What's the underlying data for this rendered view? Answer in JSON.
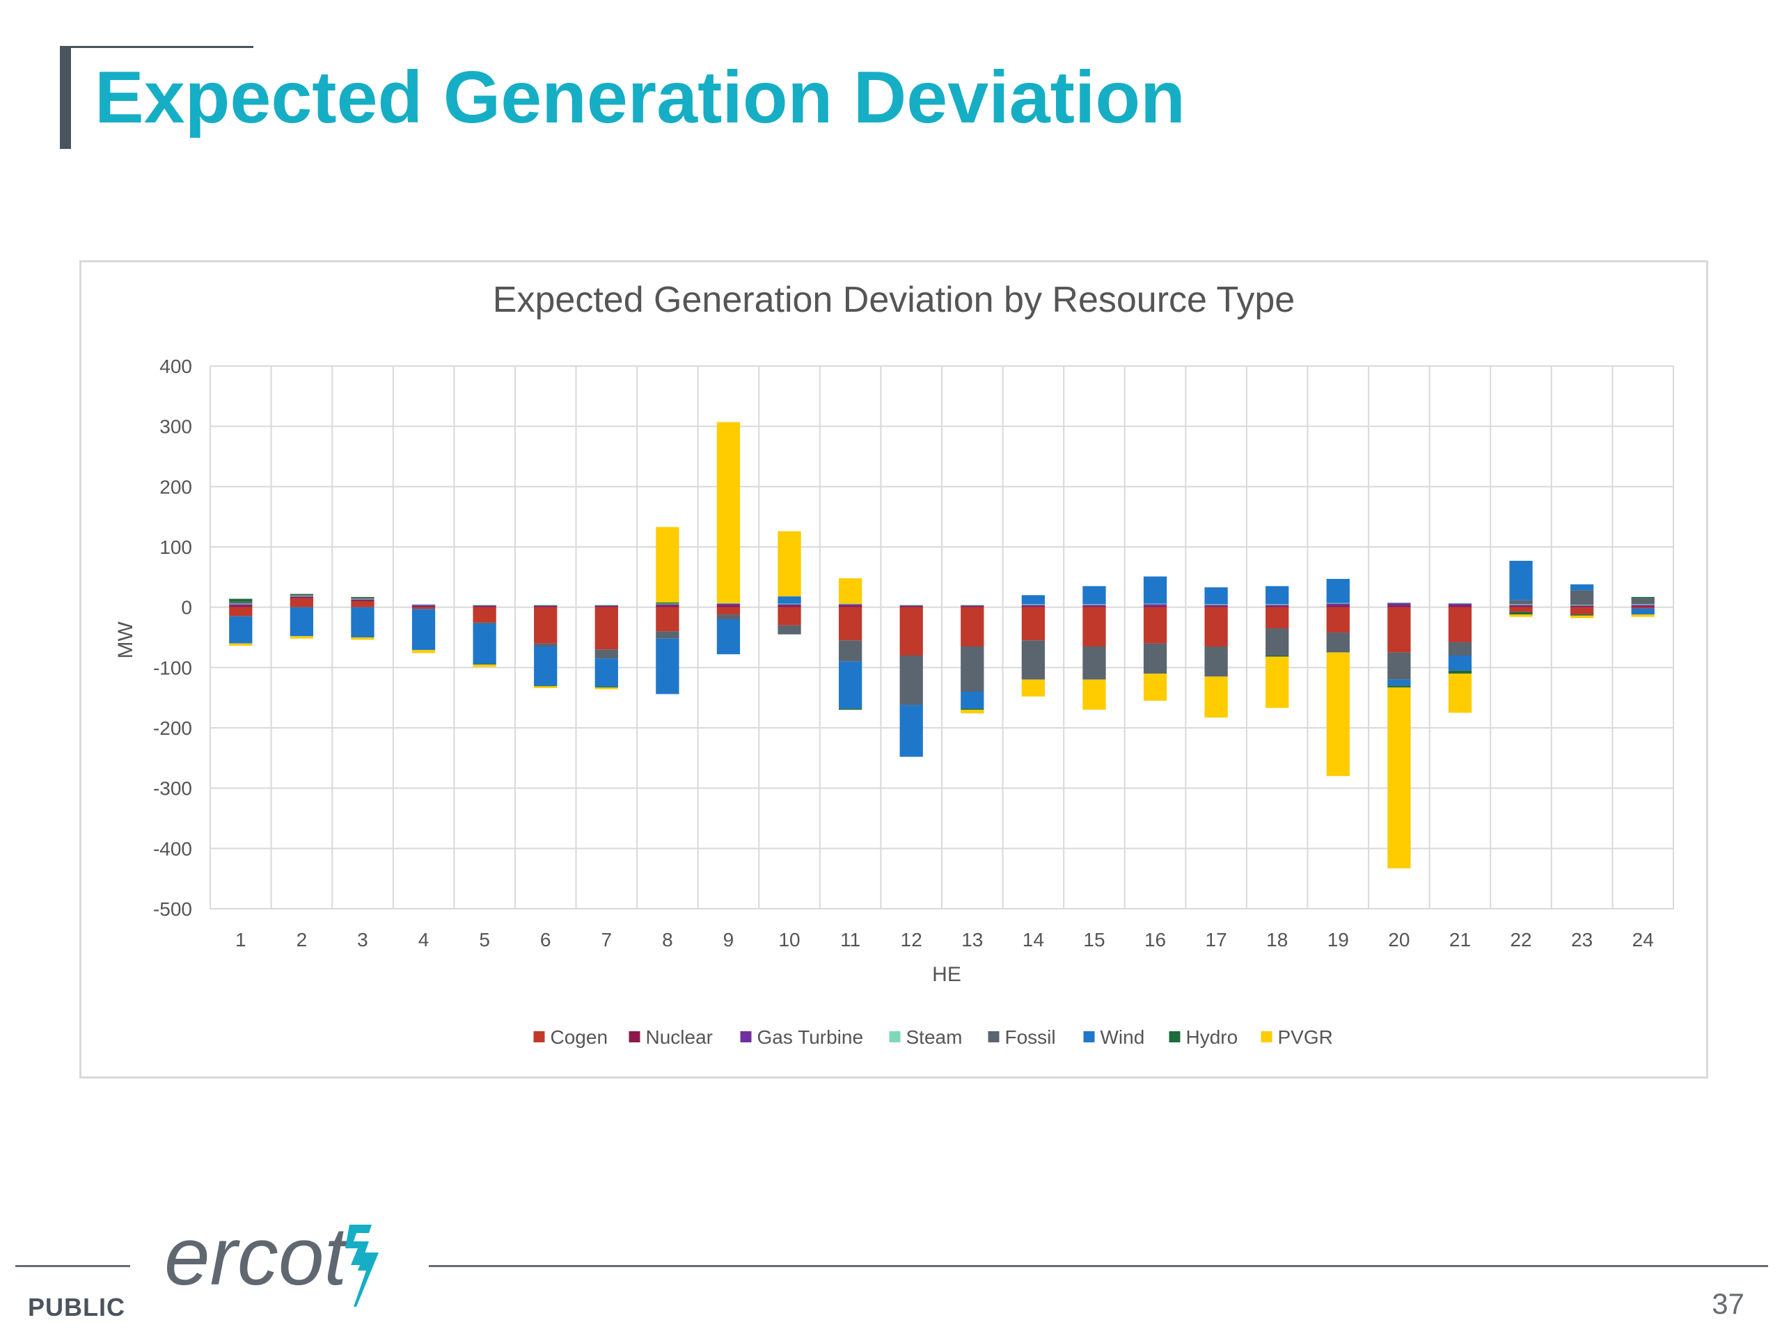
{
  "slide": {
    "title": "Expected Generation Deviation",
    "footer_label": "PUBLIC",
    "page_number": "37",
    "logo_text": "ercot",
    "title_color": "#16aec4"
  },
  "chart_data": {
    "type": "bar",
    "stacked": true,
    "title": "Expected Generation Deviation by Resource Type",
    "xlabel": "HE",
    "ylabel": "MW",
    "ylim": [
      -500,
      400
    ],
    "yticks": [
      400,
      300,
      200,
      100,
      0,
      -100,
      -200,
      -300,
      -400,
      -500
    ],
    "grid": true,
    "legend_position": "bottom",
    "categories": [
      "1",
      "2",
      "3",
      "4",
      "5",
      "6",
      "7",
      "8",
      "9",
      "10",
      "11",
      "12",
      "13",
      "14",
      "15",
      "16",
      "17",
      "18",
      "19",
      "20",
      "21",
      "22",
      "23",
      "24"
    ],
    "series": [
      {
        "name": "Cogen",
        "color": "#c0392b",
        "values": [
          -15,
          15,
          10,
          -3,
          -25,
          -60,
          -70,
          -40,
          -12,
          -30,
          -55,
          -80,
          -65,
          -55,
          -65,
          -60,
          -65,
          -35,
          -42,
          -75,
          -58,
          -8,
          -12,
          -2
        ]
      },
      {
        "name": "Nuclear",
        "color": "#8b1a4a",
        "values": [
          3,
          2,
          2,
          2,
          2,
          2,
          2,
          3,
          3,
          3,
          3,
          2,
          2,
          2,
          2,
          2,
          2,
          2,
          3,
          3,
          3,
          2,
          2,
          2
        ]
      },
      {
        "name": "Gas Turbine",
        "color": "#7030a0",
        "values": [
          2,
          1,
          1,
          2,
          1,
          1,
          1,
          2,
          3,
          2,
          2,
          1,
          1,
          2,
          2,
          3,
          2,
          2,
          3,
          4,
          3,
          2,
          1,
          2
        ]
      },
      {
        "name": "Steam",
        "color": "#7dd9b5",
        "values": [
          1,
          1,
          1,
          1,
          1,
          1,
          1,
          1,
          1,
          1,
          1,
          1,
          1,
          1,
          1,
          1,
          1,
          1,
          1,
          1,
          1,
          1,
          1,
          1
        ]
      },
      {
        "name": "Fossil",
        "color": "#5a6570",
        "values": [
          3,
          2,
          2,
          0,
          -3,
          -5,
          -15,
          -12,
          -8,
          -15,
          -35,
          -82,
          -75,
          -65,
          -55,
          -50,
          -50,
          -45,
          -33,
          -45,
          -22,
          7,
          24,
          10
        ]
      },
      {
        "name": "Wind",
        "color": "#1f77c9",
        "values": [
          -45,
          -48,
          -50,
          -68,
          -66,
          -65,
          -47,
          -92,
          -58,
          12,
          -78,
          -86,
          -28,
          15,
          30,
          45,
          28,
          30,
          40,
          -10,
          -25,
          65,
          10,
          -10
        ]
      },
      {
        "name": "Hydro",
        "color": "#1e6b3c",
        "values": [
          5,
          1,
          1,
          0,
          -1,
          -1,
          -1,
          2,
          0,
          0,
          -2,
          0,
          -2,
          0,
          0,
          0,
          0,
          -2,
          0,
          -3,
          -5,
          -4,
          -2,
          2
        ]
      },
      {
        "name": "PVGR",
        "color": "#ffcc00",
        "values": [
          -4,
          -4,
          -4,
          -5,
          -4,
          -3,
          -3,
          125,
          300,
          108,
          42,
          0,
          -6,
          -28,
          -50,
          -45,
          -68,
          -85,
          -205,
          -300,
          -65,
          -4,
          -4,
          -4
        ]
      }
    ]
  }
}
